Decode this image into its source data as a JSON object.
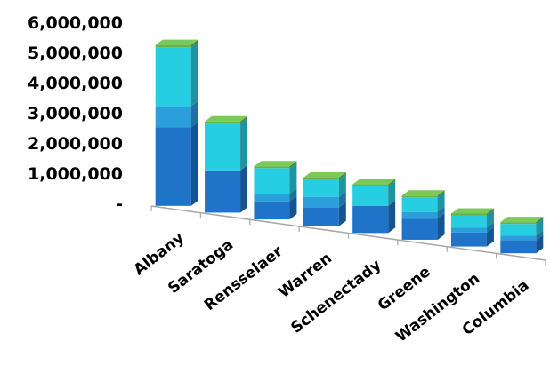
{
  "chart_data": {
    "type": "bar",
    "stacked": true,
    "three_d": true,
    "categories": [
      "Albany",
      "Saratoga",
      "Rensselaer",
      "Warren",
      "Schenectady",
      "Greene",
      "Washington",
      "Columbia"
    ],
    "series": [
      {
        "color": "#1f74c9",
        "values": [
          2600000,
          1400000,
          600000,
          620000,
          900000,
          700000,
          460000,
          430000
        ]
      },
      {
        "color": "#2a9fdc",
        "values": [
          700000,
          0,
          250000,
          350000,
          0,
          220000,
          170000,
          150000
        ]
      },
      {
        "color": "#27cde0",
        "values": [
          1950000,
          1550000,
          850000,
          580000,
          650000,
          480000,
          400000,
          390000
        ]
      },
      {
        "color": "#6ab04c",
        "values": [
          80000,
          70000,
          60000,
          60000,
          60000,
          60000,
          60000,
          60000
        ]
      }
    ],
    "yticks": [
      "-",
      "1,000,000",
      "2,000,000",
      "3,000,000",
      "4,000,000",
      "5,000,000",
      "6,000,000"
    ],
    "ylim": [
      0,
      6000000
    ],
    "grid": false,
    "legend": "none"
  }
}
